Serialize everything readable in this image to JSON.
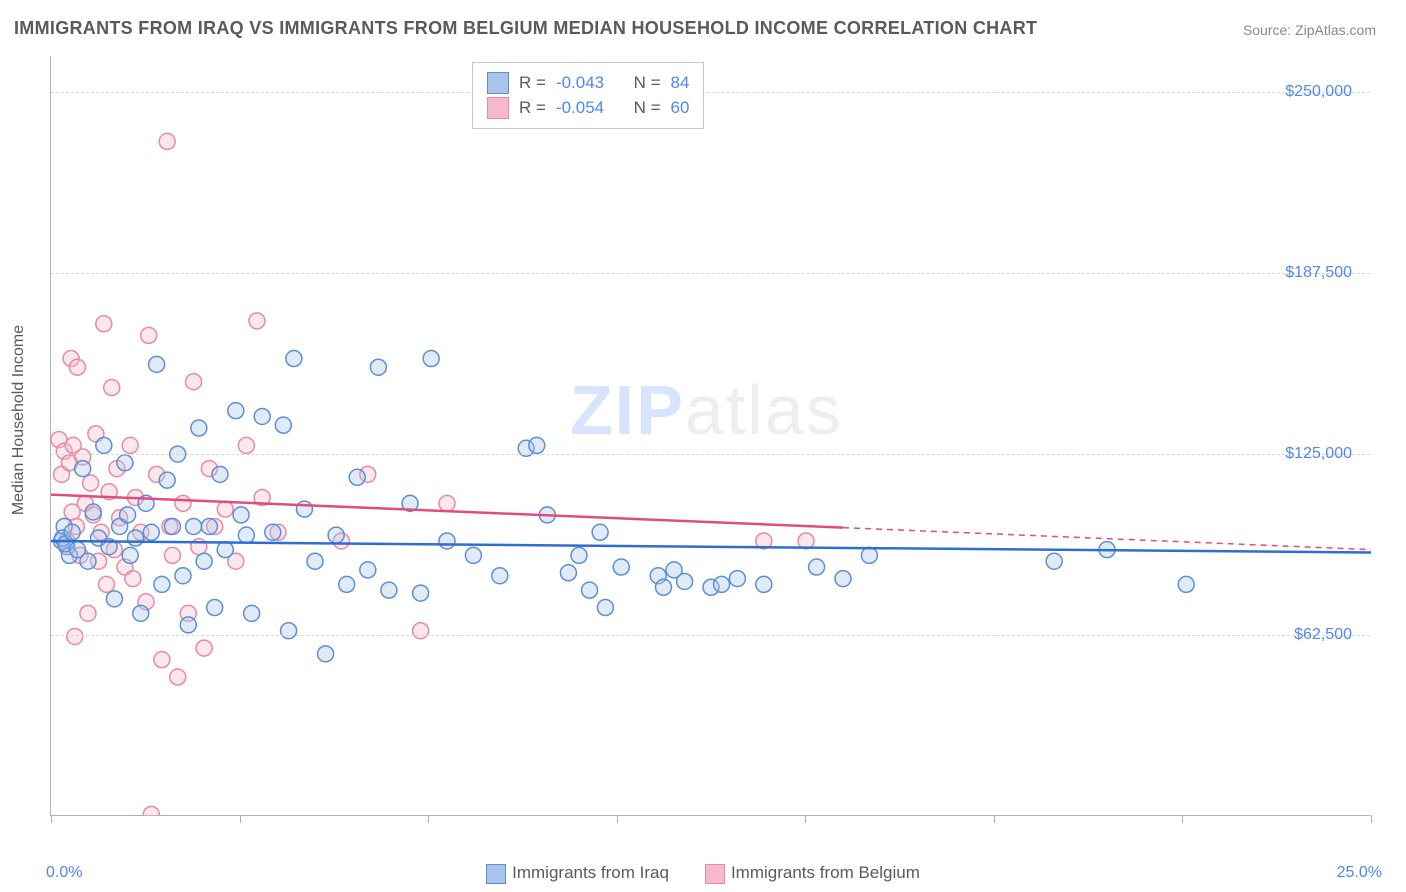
{
  "title": "IMMIGRANTS FROM IRAQ VS IMMIGRANTS FROM BELGIUM MEDIAN HOUSEHOLD INCOME CORRELATION CHART",
  "source_label": "Source: ZipAtlas.com",
  "watermark_a": "ZIP",
  "watermark_b": "atlas",
  "ylabel": "Median Household Income",
  "chart": {
    "type": "scatter",
    "xlim": [
      0,
      25
    ],
    "ylim": [
      0,
      262500
    ],
    "x_min_label": "0.0%",
    "x_max_label": "25.0%",
    "y_ticks": [
      {
        "v": 62500,
        "label": "$62,500"
      },
      {
        "v": 125000,
        "label": "$125,000"
      },
      {
        "v": 187500,
        "label": "$187,500"
      },
      {
        "v": 250000,
        "label": "$250,000"
      }
    ],
    "x_tick_count": 7,
    "grid_color": "#d8d8d8",
    "axis_color": "#b0b0b0",
    "background_color": "#ffffff",
    "marker_radius": 8,
    "marker_stroke_width": 1.5,
    "marker_fill_opacity": 0.35,
    "series": [
      {
        "name": "Immigrants from Iraq",
        "key": "iraq",
        "stroke": "#5b8fd8",
        "fill": "#a8c5ec",
        "line_color": "#2d6fd0",
        "R": "-0.043",
        "N": "84",
        "trend": {
          "x1": 0,
          "y1": 95000,
          "x2": 25,
          "y2": 91000,
          "dash_from_x": null
        },
        "points": [
          [
            0.2,
            95000
          ],
          [
            0.3,
            93000
          ],
          [
            0.25,
            100000
          ],
          [
            0.35,
            90000
          ],
          [
            0.22,
            96000
          ],
          [
            0.28,
            94000
          ],
          [
            0.4,
            98000
          ],
          [
            0.5,
            92000
          ],
          [
            0.6,
            120000
          ],
          [
            0.7,
            88000
          ],
          [
            0.8,
            105000
          ],
          [
            0.9,
            96000
          ],
          [
            1.0,
            128000
          ],
          [
            1.1,
            93000
          ],
          [
            1.2,
            75000
          ],
          [
            1.3,
            100000
          ],
          [
            1.4,
            122000
          ],
          [
            1.45,
            104000
          ],
          [
            1.5,
            90000
          ],
          [
            1.6,
            96000
          ],
          [
            1.7,
            70000
          ],
          [
            1.8,
            108000
          ],
          [
            1.9,
            98000
          ],
          [
            2.0,
            156000
          ],
          [
            2.1,
            80000
          ],
          [
            2.2,
            116000
          ],
          [
            2.3,
            100000
          ],
          [
            2.4,
            125000
          ],
          [
            2.5,
            83000
          ],
          [
            2.6,
            66000
          ],
          [
            2.7,
            100000
          ],
          [
            2.8,
            134000
          ],
          [
            2.9,
            88000
          ],
          [
            3.0,
            100000
          ],
          [
            3.1,
            72000
          ],
          [
            3.2,
            118000
          ],
          [
            3.3,
            92000
          ],
          [
            3.5,
            140000
          ],
          [
            3.6,
            104000
          ],
          [
            3.7,
            97000
          ],
          [
            3.8,
            70000
          ],
          [
            4.0,
            138000
          ],
          [
            4.2,
            98000
          ],
          [
            4.4,
            135000
          ],
          [
            4.5,
            64000
          ],
          [
            4.6,
            158000
          ],
          [
            4.8,
            106000
          ],
          [
            5.0,
            88000
          ],
          [
            5.2,
            56000
          ],
          [
            5.4,
            97000
          ],
          [
            5.6,
            80000
          ],
          [
            5.8,
            117000
          ],
          [
            6.0,
            85000
          ],
          [
            6.2,
            155000
          ],
          [
            6.4,
            78000
          ],
          [
            6.8,
            108000
          ],
          [
            7.0,
            77000
          ],
          [
            7.2,
            158000
          ],
          [
            7.5,
            95000
          ],
          [
            8.0,
            90000
          ],
          [
            8.5,
            83000
          ],
          [
            9.0,
            127000
          ],
          [
            9.2,
            128000
          ],
          [
            9.4,
            104000
          ],
          [
            9.8,
            84000
          ],
          [
            10.0,
            90000
          ],
          [
            10.2,
            78000
          ],
          [
            10.4,
            98000
          ],
          [
            10.5,
            72000
          ],
          [
            10.8,
            86000
          ],
          [
            11.5,
            83000
          ],
          [
            11.6,
            79000
          ],
          [
            11.8,
            85000
          ],
          [
            12.0,
            81000
          ],
          [
            12.5,
            79000
          ],
          [
            12.7,
            80000
          ],
          [
            13.0,
            82000
          ],
          [
            13.5,
            80000
          ],
          [
            14.5,
            86000
          ],
          [
            15.0,
            82000
          ],
          [
            15.5,
            90000
          ],
          [
            19.0,
            88000
          ],
          [
            20.0,
            92000
          ],
          [
            21.5,
            80000
          ]
        ]
      },
      {
        "name": "Immigrants from Belgium",
        "key": "belgium",
        "stroke": "#e88aa4",
        "fill": "#f5b9ca",
        "line_color": "#e04d7d",
        "R": "-0.054",
        "N": "60",
        "trend": {
          "x1": 0,
          "y1": 111000,
          "x2": 25,
          "y2": 92000,
          "dash_from_x": 15
        },
        "points": [
          [
            0.15,
            130000
          ],
          [
            0.2,
            118000
          ],
          [
            0.25,
            126000
          ],
          [
            0.3,
            95000
          ],
          [
            0.35,
            122000
          ],
          [
            0.38,
            158000
          ],
          [
            0.4,
            105000
          ],
          [
            0.42,
            128000
          ],
          [
            0.45,
            62000
          ],
          [
            0.48,
            100000
          ],
          [
            0.5,
            155000
          ],
          [
            0.55,
            90000
          ],
          [
            0.6,
            124000
          ],
          [
            0.65,
            108000
          ],
          [
            0.7,
            70000
          ],
          [
            0.75,
            115000
          ],
          [
            0.8,
            104000
          ],
          [
            0.85,
            132000
          ],
          [
            0.9,
            88000
          ],
          [
            0.95,
            98000
          ],
          [
            1.0,
            170000
          ],
          [
            1.05,
            80000
          ],
          [
            1.1,
            112000
          ],
          [
            1.15,
            148000
          ],
          [
            1.2,
            92000
          ],
          [
            1.25,
            120000
          ],
          [
            1.3,
            103000
          ],
          [
            1.4,
            86000
          ],
          [
            1.5,
            128000
          ],
          [
            1.55,
            82000
          ],
          [
            1.6,
            110000
          ],
          [
            1.7,
            98000
          ],
          [
            1.8,
            74000
          ],
          [
            1.85,
            166000
          ],
          [
            1.9,
            540
          ],
          [
            2.0,
            118000
          ],
          [
            2.1,
            54000
          ],
          [
            2.2,
            233000
          ],
          [
            2.25,
            100000
          ],
          [
            2.3,
            90000
          ],
          [
            2.4,
            48000
          ],
          [
            2.5,
            108000
          ],
          [
            2.6,
            70000
          ],
          [
            2.7,
            150000
          ],
          [
            2.8,
            93000
          ],
          [
            2.9,
            58000
          ],
          [
            3.0,
            120000
          ],
          [
            3.1,
            100000
          ],
          [
            3.3,
            106000
          ],
          [
            3.5,
            88000
          ],
          [
            3.7,
            128000
          ],
          [
            3.9,
            171000
          ],
          [
            4.0,
            110000
          ],
          [
            4.3,
            98000
          ],
          [
            5.5,
            95000
          ],
          [
            6.0,
            118000
          ],
          [
            7.0,
            64000
          ],
          [
            7.5,
            108000
          ],
          [
            13.5,
            95000
          ],
          [
            14.3,
            95000
          ]
        ]
      }
    ]
  },
  "legend_top": {
    "R_label": "R =",
    "N_label": "N ="
  },
  "legend_bottom": {
    "series": [
      {
        "label": "Immigrants from Iraq",
        "fill": "#a8c5ec",
        "stroke": "#5b8fd8"
      },
      {
        "label": "Immigrants from Belgium",
        "fill": "#f5b9ca",
        "stroke": "#e88aa4"
      }
    ]
  }
}
